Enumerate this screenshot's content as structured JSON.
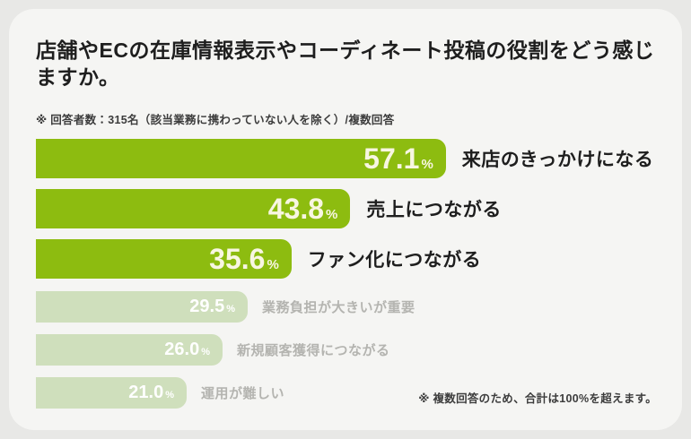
{
  "page": {
    "title": "店舗やECの在庫情報表示やコーディネート投稿の役割をどう感じますか。",
    "respondent_note": "※ 回答者数：315名（該当業務に携わっていない人を除く）/複数回答",
    "footnote": "※ 複数回答のため、合計は100%を超えます。"
  },
  "colors": {
    "page_background": "#E8E8E6",
    "card_background": "#F5F5F3",
    "bar_primary": "#8DBC10",
    "bar_muted": "#CFDFBC",
    "value_text_primary": "#F8F6E2",
    "value_text_muted": "#FFFFFF",
    "label_primary": "#1E1E1E",
    "label_muted": "#B4B4B0"
  },
  "chart_data": {
    "type": "bar",
    "orientation": "horizontal",
    "title": "店舗やECの在庫情報表示やコーディネート投稿の役割をどう感じますか。",
    "subtitle": "※ 回答者数：315名（該当業務に携わっていない人を除く）/複数回答",
    "annotation": "※ 複数回答のため、合計は100%を超えます。",
    "unit": "%",
    "categories": [
      "来店のきっかけになる",
      "売上につながる",
      "ファン化につながる",
      "業務負担が大きいが重要",
      "新規顧客獲得につながる",
      "運用が難しい"
    ],
    "values": [
      57.1,
      43.8,
      35.6,
      29.5,
      26.0,
      21.0
    ],
    "display_values": [
      "57.1",
      "43.8",
      "35.6",
      "29.5",
      "26.0",
      "21.0"
    ],
    "emphasized": [
      true,
      true,
      true,
      false,
      false,
      false
    ],
    "value_labels_inside_bar": true,
    "category_labels_right_of_bar": true,
    "legend": "none",
    "grid": false,
    "xlim": [
      0,
      60
    ],
    "pixels_per_percent": 8
  }
}
